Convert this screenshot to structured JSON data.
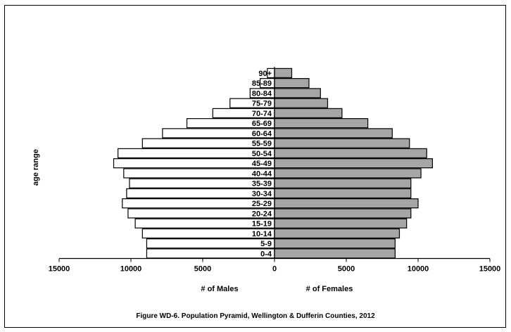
{
  "chart_data": {
    "type": "bar",
    "orientation": "horizontal",
    "title": "Figure WD-6.  Population Pyramid, Wellington & Dufferin Counties,  2012",
    "ylabel": "age range",
    "xlabel_left": "# of Males",
    "xlabel_right": "# of  Females",
    "xlim": [
      -15000,
      15000
    ],
    "x_ticks": [
      "15000",
      "10000",
      "5000",
      "0",
      "5000",
      "10000",
      "15000"
    ],
    "categories": [
      "0-4",
      "5-9",
      "10-14",
      "15-19",
      "20-24",
      "25-29",
      "30-34",
      "35-39",
      "40-44",
      "45-49",
      "50-54",
      "55-59",
      "60-64",
      "65-69",
      "70-74",
      "75-79",
      "80-84",
      "85-89",
      "90+"
    ],
    "series": [
      {
        "name": "# of Males",
        "color": "#ffffff",
        "values": [
          8900,
          8900,
          9200,
          9700,
          10200,
          10600,
          10300,
          10100,
          10500,
          11200,
          10900,
          9200,
          7800,
          6100,
          4300,
          3100,
          1700,
          1000,
          500
        ]
      },
      {
        "name": "# of  Females",
        "color": "#a6a6a6",
        "values": [
          8400,
          8400,
          8700,
          9200,
          9500,
          10000,
          9500,
          9500,
          10200,
          11000,
          10600,
          9400,
          8200,
          6500,
          4700,
          3700,
          3200,
          2400,
          1200
        ]
      }
    ],
    "grid": false,
    "legend": "none"
  }
}
